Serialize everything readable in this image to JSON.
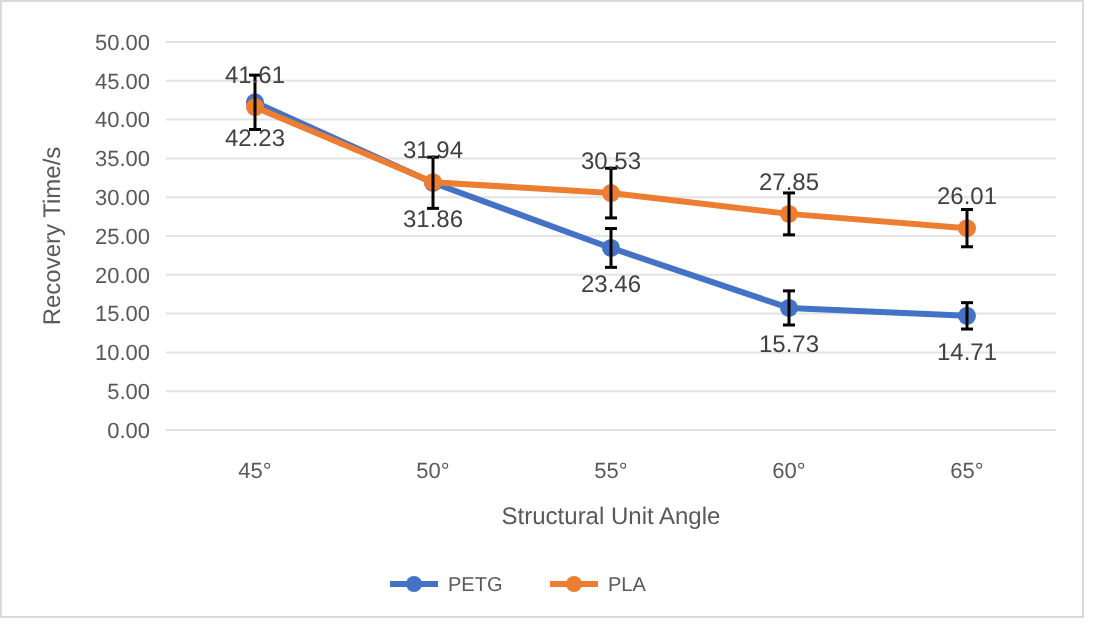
{
  "chart_data": {
    "type": "line",
    "xlabel": "Structural Unit Angle",
    "ylabel": "Recovery Time/s",
    "categories": [
      "45°",
      "50°",
      "55°",
      "60°",
      "65°"
    ],
    "series": [
      {
        "name": "PETG",
        "color": "#4472c4",
        "values": [
          42.23,
          31.86,
          23.46,
          15.73,
          14.71
        ],
        "errors": [
          3.5,
          3.3,
          2.5,
          2.2,
          1.7
        ]
      },
      {
        "name": "PLA",
        "color": "#ed7d31",
        "values": [
          41.61,
          31.94,
          30.53,
          27.85,
          26.01
        ],
        "errors": [
          null,
          null,
          3.2,
          2.7,
          2.4
        ]
      }
    ],
    "ylim": [
      0,
      50
    ],
    "yticks": [
      {
        "value": 0,
        "label": "0.00"
      },
      {
        "value": 5,
        "label": "5.00"
      },
      {
        "value": 10,
        "label": "10.00"
      },
      {
        "value": 15,
        "label": "15.00"
      },
      {
        "value": 20,
        "label": "20.00"
      },
      {
        "value": 25,
        "label": "25.00"
      },
      {
        "value": 30,
        "label": "30.00"
      },
      {
        "value": 35,
        "label": "35.00"
      },
      {
        "value": 40,
        "label": "40.00"
      },
      {
        "value": 45,
        "label": "45.00"
      },
      {
        "value": 50,
        "label": "50.00"
      }
    ],
    "grid": "y",
    "legend": "bottom",
    "marker": "circle",
    "line_style": "solid",
    "data_labels": true
  }
}
